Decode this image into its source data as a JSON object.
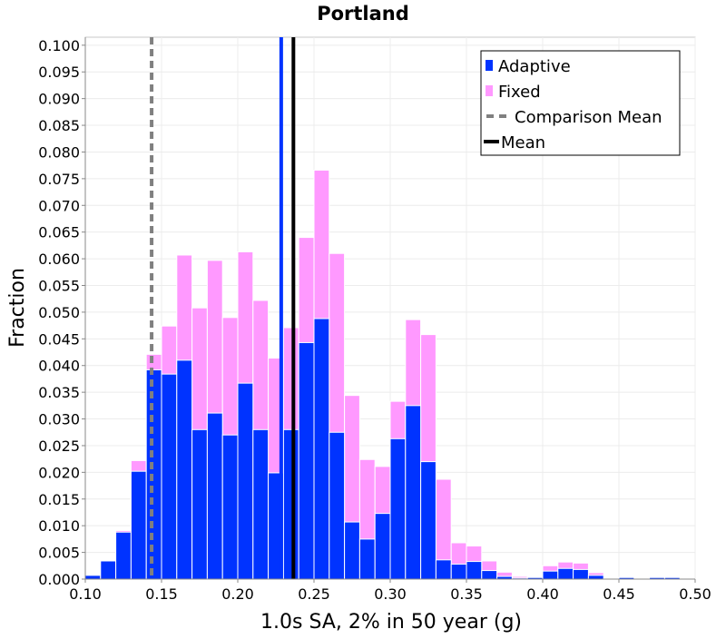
{
  "chart_data": {
    "type": "bar",
    "title": "Portland",
    "xlabel": "1.0s SA, 2% in 50 year (g)",
    "ylabel": "Fraction",
    "xlim": [
      0.1,
      0.5
    ],
    "ylim": [
      0.0,
      0.1015
    ],
    "bin_width": 0.01,
    "x_ticks": [
      {
        "value": 0.1,
        "label": "0.10"
      },
      {
        "value": 0.15,
        "label": "0.15"
      },
      {
        "value": 0.2,
        "label": "0.20"
      },
      {
        "value": 0.25,
        "label": "0.25"
      },
      {
        "value": 0.3,
        "label": "0.30"
      },
      {
        "value": 0.35,
        "label": "0.35"
      },
      {
        "value": 0.4,
        "label": "0.40"
      },
      {
        "value": 0.45,
        "label": "0.45"
      },
      {
        "value": 0.5,
        "label": "0.50"
      }
    ],
    "y_ticks": [
      {
        "value": 0.0,
        "label": "0.000"
      },
      {
        "value": 0.005,
        "label": "0.005"
      },
      {
        "value": 0.01,
        "label": "0.010"
      },
      {
        "value": 0.015,
        "label": "0.015"
      },
      {
        "value": 0.02,
        "label": "0.020"
      },
      {
        "value": 0.025,
        "label": "0.025"
      },
      {
        "value": 0.03,
        "label": "0.030"
      },
      {
        "value": 0.035,
        "label": "0.035"
      },
      {
        "value": 0.04,
        "label": "0.040"
      },
      {
        "value": 0.045,
        "label": "0.045"
      },
      {
        "value": 0.05,
        "label": "0.050"
      },
      {
        "value": 0.055,
        "label": "0.055"
      },
      {
        "value": 0.06,
        "label": "0.060"
      },
      {
        "value": 0.065,
        "label": "0.065"
      },
      {
        "value": 0.07,
        "label": "0.070"
      },
      {
        "value": 0.075,
        "label": "0.075"
      },
      {
        "value": 0.08,
        "label": "0.080"
      },
      {
        "value": 0.085,
        "label": "0.085"
      },
      {
        "value": 0.09,
        "label": "0.090"
      },
      {
        "value": 0.095,
        "label": "0.095"
      },
      {
        "value": 0.1,
        "label": "0.100"
      }
    ],
    "grid": true,
    "legend_position": "top-right",
    "bin_starts": [
      0.1,
      0.11,
      0.12,
      0.13,
      0.14,
      0.15,
      0.16,
      0.17,
      0.18,
      0.19,
      0.2,
      0.21,
      0.22,
      0.23,
      0.24,
      0.25,
      0.26,
      0.27,
      0.28,
      0.29,
      0.3,
      0.31,
      0.32,
      0.33,
      0.34,
      0.35,
      0.36,
      0.37,
      0.38,
      0.39,
      0.4,
      0.41,
      0.42,
      0.43,
      0.44,
      0.45,
      0.46,
      0.47,
      0.48
    ],
    "series": [
      {
        "name": "Fixed",
        "color": "#ff99ff",
        "values": [
          0.0005,
          0.0034,
          0.0091,
          0.0222,
          0.0421,
          0.0474,
          0.0607,
          0.0508,
          0.0597,
          0.049,
          0.0613,
          0.0522,
          0.0414,
          0.0471,
          0.064,
          0.0766,
          0.061,
          0.0344,
          0.0224,
          0.0211,
          0.0333,
          0.0486,
          0.0458,
          0.0187,
          0.0068,
          0.0062,
          0.0034,
          0.0013,
          0.0005,
          0.0003,
          0.0025,
          0.0032,
          0.003,
          0.0012,
          0.0002,
          0.0003,
          0.0,
          0.0003,
          0.0003
        ],
        "overflow_to": 0.103
      },
      {
        "name": "Adaptive",
        "color": "#0033ff",
        "values": [
          0.0007,
          0.0034,
          0.0088,
          0.0202,
          0.0392,
          0.0384,
          0.041,
          0.028,
          0.0311,
          0.027,
          0.0367,
          0.028,
          0.0199,
          0.028,
          0.0443,
          0.0488,
          0.0275,
          0.0107,
          0.0075,
          0.0123,
          0.0263,
          0.0325,
          0.022,
          0.0036,
          0.0028,
          0.0033,
          0.0016,
          0.0005,
          0.0002,
          0.0003,
          0.0015,
          0.002,
          0.0018,
          0.0007,
          0.0001,
          0.0003,
          0.0,
          0.0003,
          0.0003
        ]
      }
    ],
    "vertical_lines": [
      {
        "name": "Comparison Mean",
        "x": 0.1435,
        "color": "#808080",
        "style": "dashed"
      },
      {
        "name": "Adaptive",
        "x": 0.2285,
        "color": "#0033ff",
        "style": "solid"
      },
      {
        "name": "Mean",
        "x": 0.2365,
        "color": "#000000",
        "style": "solid"
      }
    ],
    "legend": [
      {
        "label": "Adaptive",
        "kind": "box",
        "color": "#0033ff"
      },
      {
        "label": "Fixed",
        "kind": "box",
        "color": "#ff99ff"
      },
      {
        "label": "Comparison Mean",
        "kind": "dashed-line",
        "color": "#808080"
      },
      {
        "label": "Mean",
        "kind": "line",
        "color": "#000000"
      }
    ]
  }
}
